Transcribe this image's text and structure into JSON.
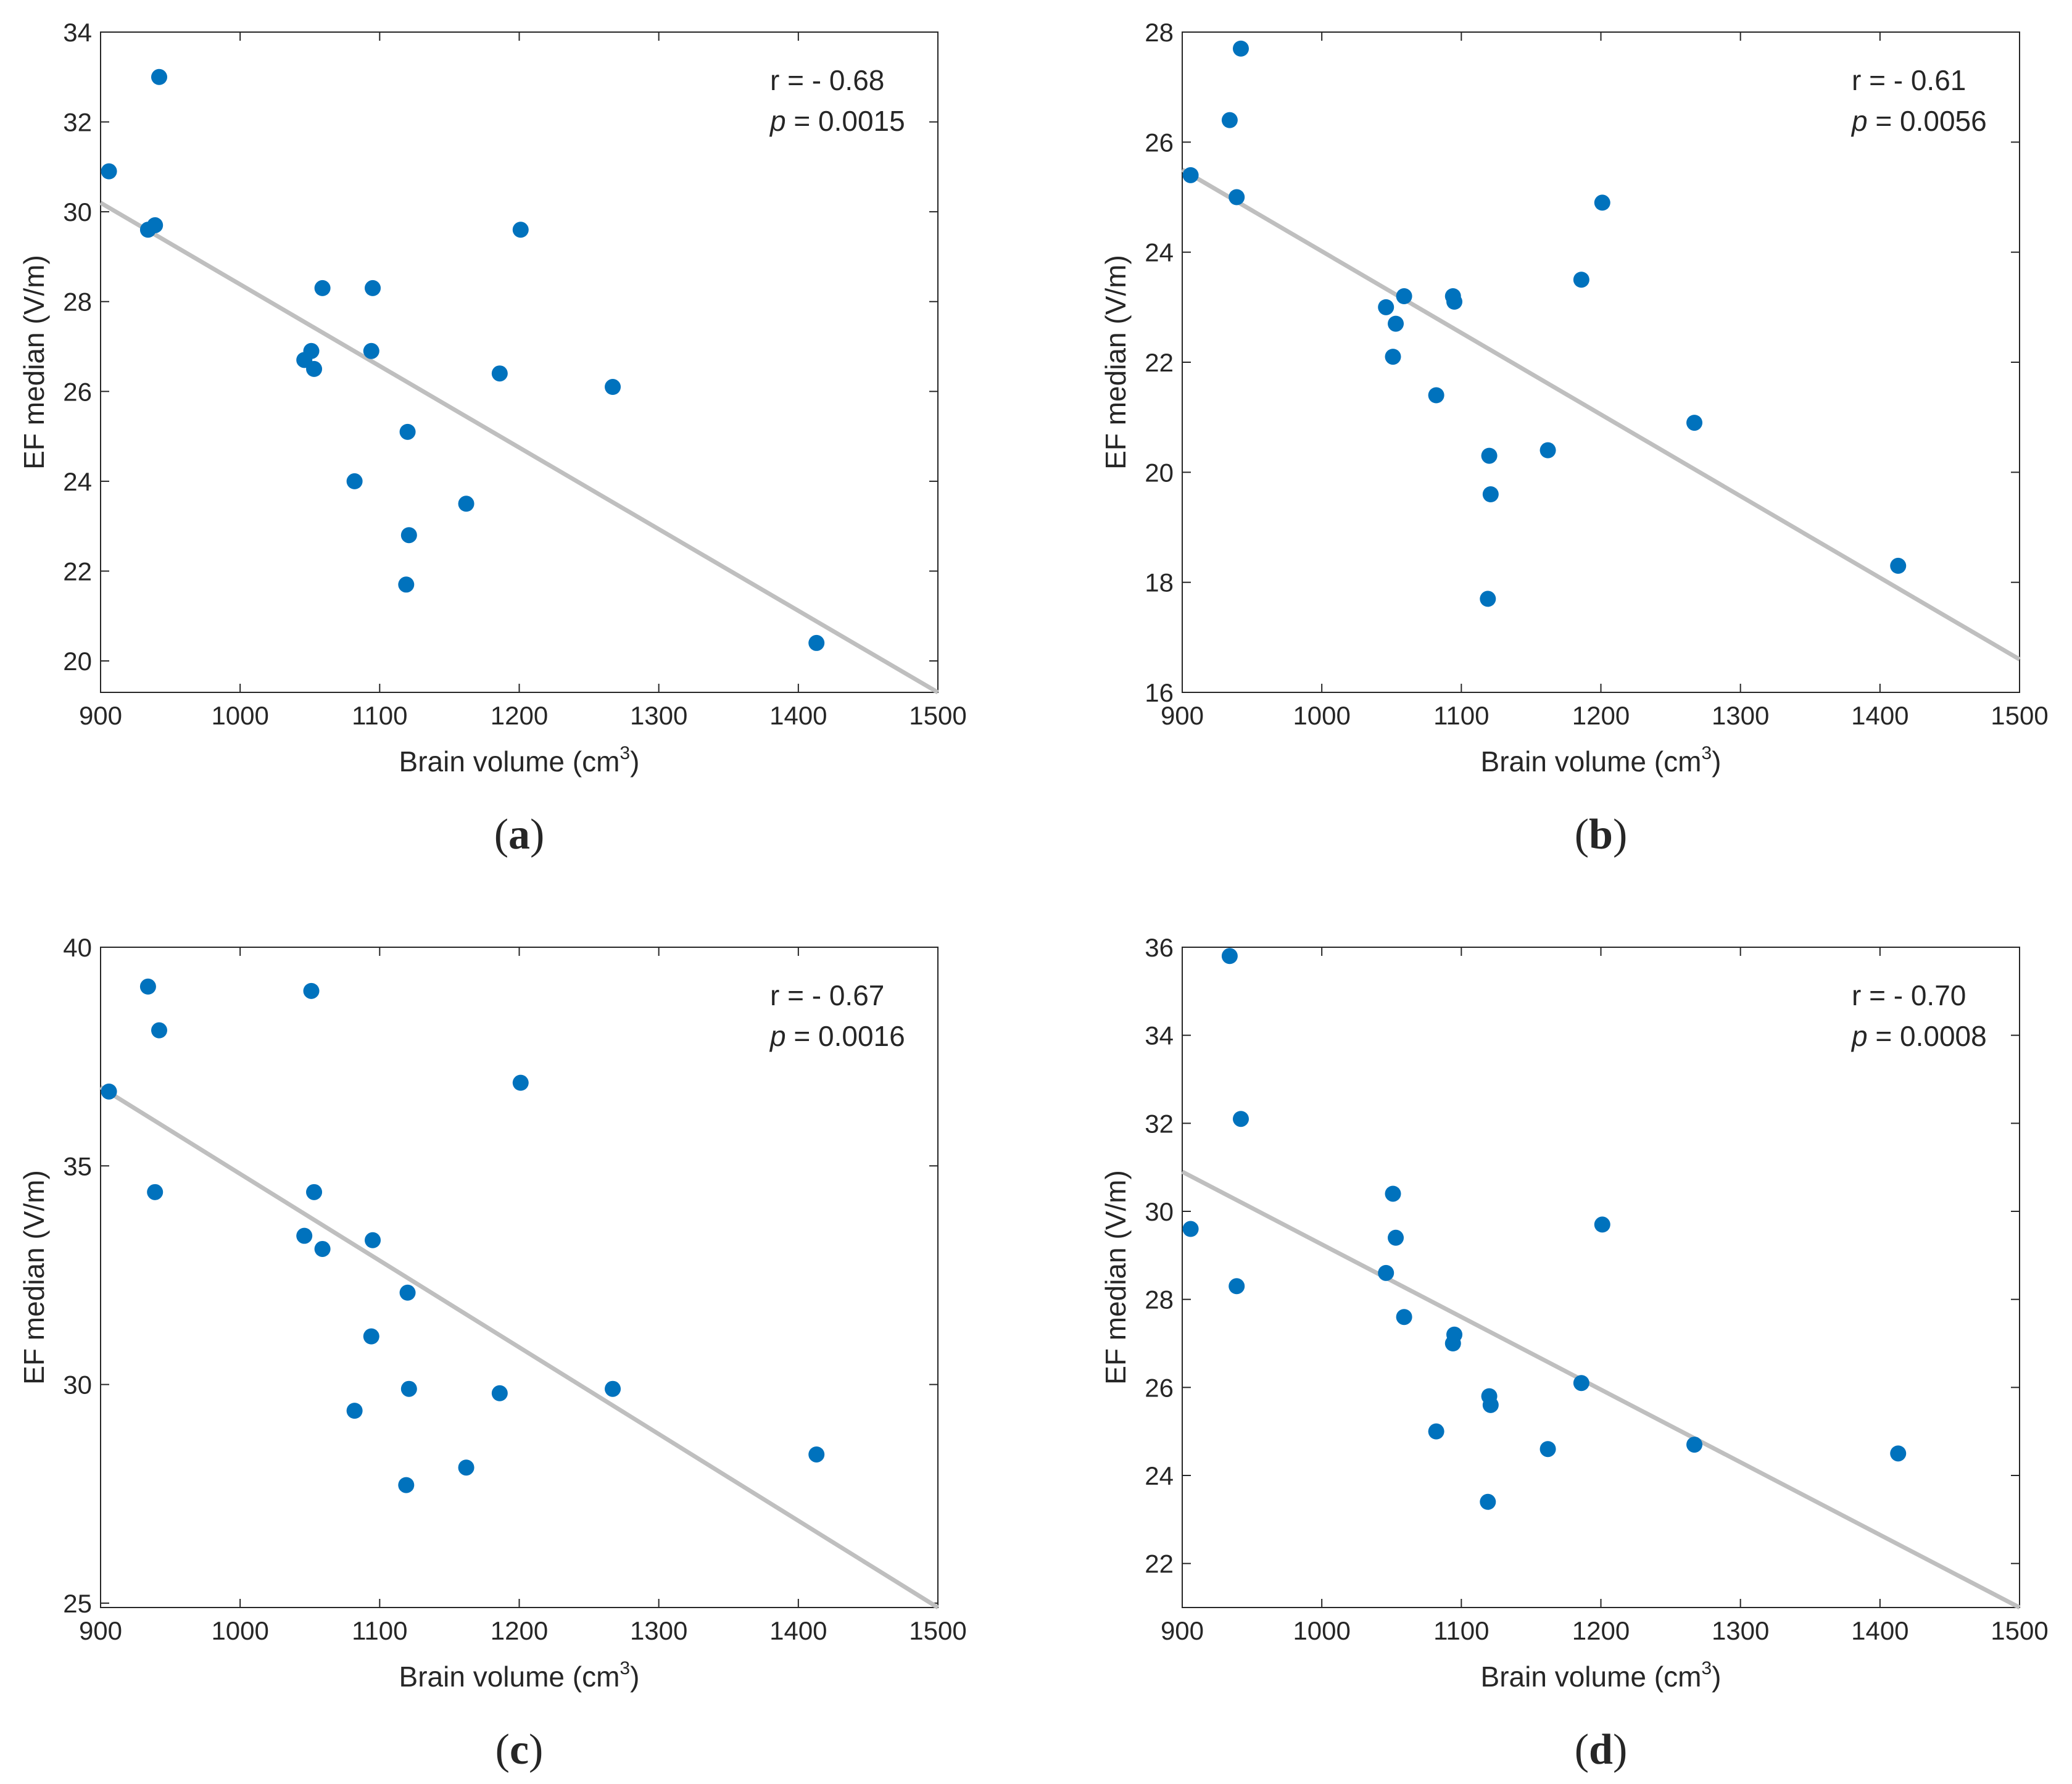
{
  "colors": {
    "point": "#0072BD",
    "fit_line": "#BFBFBF",
    "axis": "#262626"
  },
  "chart_data": [
    {
      "panel": "a",
      "panel_label": "a",
      "type": "scatter",
      "xlabel": "Brain volume (cm",
      "xlabel_sup": "3",
      "xlabel_suffix": ")",
      "ylabel": "EF median (V/m)",
      "xlim": [
        900,
        1500
      ],
      "ylim": [
        19.3,
        34
      ],
      "xticks": [
        900,
        1000,
        1100,
        1200,
        1300,
        1400,
        1500
      ],
      "yticks": [
        20,
        22,
        24,
        26,
        28,
        30,
        32,
        34
      ],
      "stats": {
        "r_text": "r = - 0.68",
        "p_label": "p",
        "p_value": " = 0.0015"
      },
      "fit_line": {
        "x": [
          900,
          1500
        ],
        "y": [
          30.2,
          19.3
        ]
      },
      "points": [
        {
          "x": 906,
          "y": 30.9
        },
        {
          "x": 934,
          "y": 29.6
        },
        {
          "x": 939,
          "y": 29.7
        },
        {
          "x": 942,
          "y": 33.0
        },
        {
          "x": 1046,
          "y": 26.7
        },
        {
          "x": 1051,
          "y": 26.9
        },
        {
          "x": 1053,
          "y": 26.5
        },
        {
          "x": 1059,
          "y": 28.3
        },
        {
          "x": 1082,
          "y": 24.0
        },
        {
          "x": 1094,
          "y": 26.9
        },
        {
          "x": 1095,
          "y": 28.3
        },
        {
          "x": 1119,
          "y": 21.7
        },
        {
          "x": 1120,
          "y": 25.1
        },
        {
          "x": 1121,
          "y": 22.8
        },
        {
          "x": 1162,
          "y": 23.5
        },
        {
          "x": 1186,
          "y": 26.4
        },
        {
          "x": 1201,
          "y": 29.6
        },
        {
          "x": 1267,
          "y": 26.1
        },
        {
          "x": 1413,
          "y": 20.4
        }
      ]
    },
    {
      "panel": "b",
      "panel_label": "b",
      "type": "scatter",
      "xlabel": "Brain volume (cm",
      "xlabel_sup": "3",
      "xlabel_suffix": ")",
      "ylabel": "EF median (V/m)",
      "xlim": [
        900,
        1500
      ],
      "ylim": [
        16,
        28
      ],
      "xticks": [
        900,
        1000,
        1100,
        1200,
        1300,
        1400,
        1500
      ],
      "yticks": [
        16,
        18,
        20,
        22,
        24,
        26,
        28
      ],
      "stats": {
        "r_text": "r = - 0.61",
        "p_label": "p",
        "p_value": " = 0.0056"
      },
      "fit_line": {
        "x": [
          900,
          1500
        ],
        "y": [
          25.5,
          16.6
        ]
      },
      "points": [
        {
          "x": 906,
          "y": 25.4
        },
        {
          "x": 934,
          "y": 26.4
        },
        {
          "x": 939,
          "y": 25.0
        },
        {
          "x": 942,
          "y": 27.7
        },
        {
          "x": 1046,
          "y": 23.0
        },
        {
          "x": 1051,
          "y": 22.1
        },
        {
          "x": 1053,
          "y": 22.7
        },
        {
          "x": 1059,
          "y": 23.2
        },
        {
          "x": 1082,
          "y": 21.4
        },
        {
          "x": 1094,
          "y": 23.2
        },
        {
          "x": 1095,
          "y": 23.1
        },
        {
          "x": 1119,
          "y": 17.7
        },
        {
          "x": 1120,
          "y": 20.3
        },
        {
          "x": 1121,
          "y": 19.6
        },
        {
          "x": 1162,
          "y": 20.4
        },
        {
          "x": 1186,
          "y": 23.5
        },
        {
          "x": 1201,
          "y": 24.9
        },
        {
          "x": 1267,
          "y": 20.9
        },
        {
          "x": 1413,
          "y": 18.3
        }
      ]
    },
    {
      "panel": "c",
      "panel_label": "c",
      "type": "scatter",
      "xlabel": "Brain volume (cm",
      "xlabel_sup": "3",
      "xlabel_suffix": ")",
      "ylabel": "EF median (V/m)",
      "xlim": [
        900,
        1500
      ],
      "ylim": [
        24.9,
        40
      ],
      "xticks": [
        900,
        1000,
        1100,
        1200,
        1300,
        1400,
        1500
      ],
      "yticks": [
        25,
        30,
        35,
        40
      ],
      "stats": {
        "r_text": "r = - 0.67",
        "p_label": "p",
        "p_value": " = 0.0016"
      },
      "fit_line": {
        "x": [
          900,
          1500
        ],
        "y": [
          36.8,
          24.9
        ]
      },
      "points": [
        {
          "x": 906,
          "y": 36.7
        },
        {
          "x": 934,
          "y": 39.1
        },
        {
          "x": 939,
          "y": 34.4
        },
        {
          "x": 942,
          "y": 38.1
        },
        {
          "x": 1046,
          "y": 33.4
        },
        {
          "x": 1051,
          "y": 39.0
        },
        {
          "x": 1053,
          "y": 34.4
        },
        {
          "x": 1059,
          "y": 33.1
        },
        {
          "x": 1082,
          "y": 29.4
        },
        {
          "x": 1094,
          "y": 31.1
        },
        {
          "x": 1095,
          "y": 33.3
        },
        {
          "x": 1119,
          "y": 27.7
        },
        {
          "x": 1120,
          "y": 32.1
        },
        {
          "x": 1121,
          "y": 29.9
        },
        {
          "x": 1162,
          "y": 28.1
        },
        {
          "x": 1186,
          "y": 29.8
        },
        {
          "x": 1201,
          "y": 36.9
        },
        {
          "x": 1267,
          "y": 29.9
        },
        {
          "x": 1413,
          "y": 28.4
        }
      ]
    },
    {
      "panel": "d",
      "panel_label": "d",
      "type": "scatter",
      "xlabel": "Brain volume (cm",
      "xlabel_sup": "3",
      "xlabel_suffix": ")",
      "ylabel": "EF median (V/m)",
      "xlim": [
        900,
        1500
      ],
      "ylim": [
        21,
        36
      ],
      "xticks": [
        900,
        1000,
        1100,
        1200,
        1300,
        1400,
        1500
      ],
      "yticks": [
        22,
        24,
        26,
        28,
        30,
        32,
        34,
        36
      ],
      "stats": {
        "r_text": "r = - 0.70",
        "p_label": "p",
        "p_value": " = 0.0008"
      },
      "fit_line": {
        "x": [
          900,
          1500
        ],
        "y": [
          30.9,
          21.0
        ]
      },
      "points": [
        {
          "x": 906,
          "y": 29.6
        },
        {
          "x": 934,
          "y": 35.8
        },
        {
          "x": 939,
          "y": 28.3
        },
        {
          "x": 942,
          "y": 32.1
        },
        {
          "x": 1046,
          "y": 28.6
        },
        {
          "x": 1051,
          "y": 30.4
        },
        {
          "x": 1053,
          "y": 29.4
        },
        {
          "x": 1059,
          "y": 27.6
        },
        {
          "x": 1082,
          "y": 25.0
        },
        {
          "x": 1094,
          "y": 27.0
        },
        {
          "x": 1095,
          "y": 27.2
        },
        {
          "x": 1119,
          "y": 23.4
        },
        {
          "x": 1120,
          "y": 25.8
        },
        {
          "x": 1121,
          "y": 25.6
        },
        {
          "x": 1162,
          "y": 24.6
        },
        {
          "x": 1186,
          "y": 26.1
        },
        {
          "x": 1201,
          "y": 29.7
        },
        {
          "x": 1267,
          "y": 24.7
        },
        {
          "x": 1413,
          "y": 24.5
        }
      ]
    }
  ]
}
